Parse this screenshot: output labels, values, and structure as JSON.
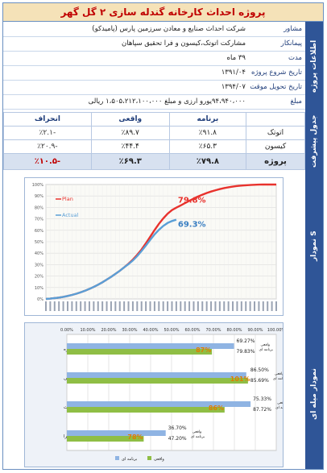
{
  "title": "پروژه احداث کارخانه گندله سازی ۲ گل گهر",
  "info": {
    "section_label": "اطلاعات پروژه",
    "rows": [
      {
        "label": "مشاور",
        "value": "شرکت احداث صنایع و معادن سرزمین پارس (پامیدکو)"
      },
      {
        "label": "پیمانکار",
        "value": "مشارکت اتوتک،کیسون و فرا تحقیق سپاهان"
      },
      {
        "label": "مدت",
        "value": "۳۹ ماه"
      },
      {
        "label": "تاریخ شروع پروژه",
        "value": "۱۳۹۱/۰۴"
      },
      {
        "label": "تاریخ تحویل موقت",
        "value": "۱۳۹۴/۰۷"
      },
      {
        "label": "مبلغ",
        "value": "۹۴،۹۴۰،۰۰۰یورو ارزی و مبلغ ۱،۵۰۵،۲۱۲،۱۰۰،۰۰۰ ریالی"
      }
    ]
  },
  "progress": {
    "section_label": "جدول پیشرفت",
    "headers": {
      "program": "برنامه",
      "actual": "واقعی",
      "deviation": "انحراف"
    },
    "rows": [
      {
        "name": "اتوتک",
        "program": "٪۹۱.۸",
        "actual": "٪۸۹.۷",
        "deviation": "-٪۲.۱"
      },
      {
        "name": "کیسون",
        "program": "٪۶۵.۳",
        "actual": "٪۴۴.۴",
        "deviation": "-٪۲۰.۹"
      }
    ],
    "total": {
      "name": "پروژه",
      "program": "٪۷۹.۸",
      "actual": "٪۶۹.۳",
      "deviation": "-٪۱۰.۵"
    }
  },
  "scurve": {
    "section_label": "نمودار S",
    "chart_data": {
      "type": "line",
      "y_ticks": [
        "0%",
        "10%",
        "20%",
        "30%",
        "40%",
        "50%",
        "60%",
        "70%",
        "80%",
        "90%",
        "100%"
      ],
      "ylim": [
        0,
        100
      ],
      "series": [
        {
          "name": "Plan",
          "color": "#e8322d",
          "values": [
            0,
            0.3,
            0.7,
            1.2,
            1.8,
            2.6,
            3.5,
            4.6,
            5.8,
            7.2,
            8.8,
            10.5,
            12.5,
            14.6,
            16.9,
            19.3,
            21.9,
            24.6,
            27.6,
            30.8,
            34.4,
            38.5,
            43.2,
            48.6,
            54.4,
            60.2,
            65.6,
            70.4,
            74.5,
            77.7,
            79.8,
            81.7,
            83.8,
            85.8,
            87.7,
            89.5,
            91.1,
            92.6,
            93.9,
            95.0,
            96.0,
            96.9,
            97.6,
            98.2,
            98.7,
            99.1,
            99.4,
            99.6,
            99.8,
            99.9,
            100,
            100,
            100,
            100
          ]
        },
        {
          "name": "Actual",
          "color": "#5a9fd6",
          "values": [
            0,
            0.3,
            0.7,
            1.2,
            1.8,
            2.6,
            3.5,
            4.6,
            5.8,
            7.2,
            8.8,
            10.5,
            12.5,
            14.6,
            16.9,
            19.3,
            21.9,
            24.6,
            27.6,
            30.4,
            33.6,
            37.5,
            41.9,
            46.6,
            51.6,
            56.4,
            60.4,
            63.8,
            66.4,
            68.1,
            69.3
          ]
        }
      ],
      "annotations": {
        "plan_label": "79.8%",
        "actual_label": "69.3%"
      }
    }
  },
  "bars": {
    "section_label": "نمودار میله ای",
    "chart_data": {
      "type": "bar",
      "x_ticks": [
        "0.00%",
        "10.00%",
        "20.00%",
        "30.00%",
        "40.00%",
        "50.00%",
        "60.00%",
        "70.00%",
        "80.00%",
        "90.00%",
        "100.00%"
      ],
      "xlim": [
        0,
        100
      ],
      "categories": [
        "کل پروژه",
        "مهندسی",
        "تدارکات",
        "اجرا"
      ],
      "series": [
        {
          "name": "واقعی",
          "color": "#8fbe45",
          "values": [
            69.27,
            86.5,
            75.33,
            36.7
          ]
        },
        {
          "name": "برنامه ای",
          "color": "#8fb4e3",
          "values": [
            79.83,
            85.69,
            87.72,
            47.2
          ]
        }
      ],
      "actual_labels": [
        "69.27%",
        "86.50%",
        "75.33%",
        "36.70%"
      ],
      "plan_labels": [
        "79.83%",
        "85.69%",
        "87.72%",
        "47.20%"
      ],
      "ratio_labels": [
        "87%",
        "101%",
        "86%",
        "78%"
      ],
      "row_tag_actual": "واقعی",
      "row_tag_plan": "برنامه ای",
      "legend": [
        "برنامه ای",
        "واقعی"
      ]
    }
  }
}
